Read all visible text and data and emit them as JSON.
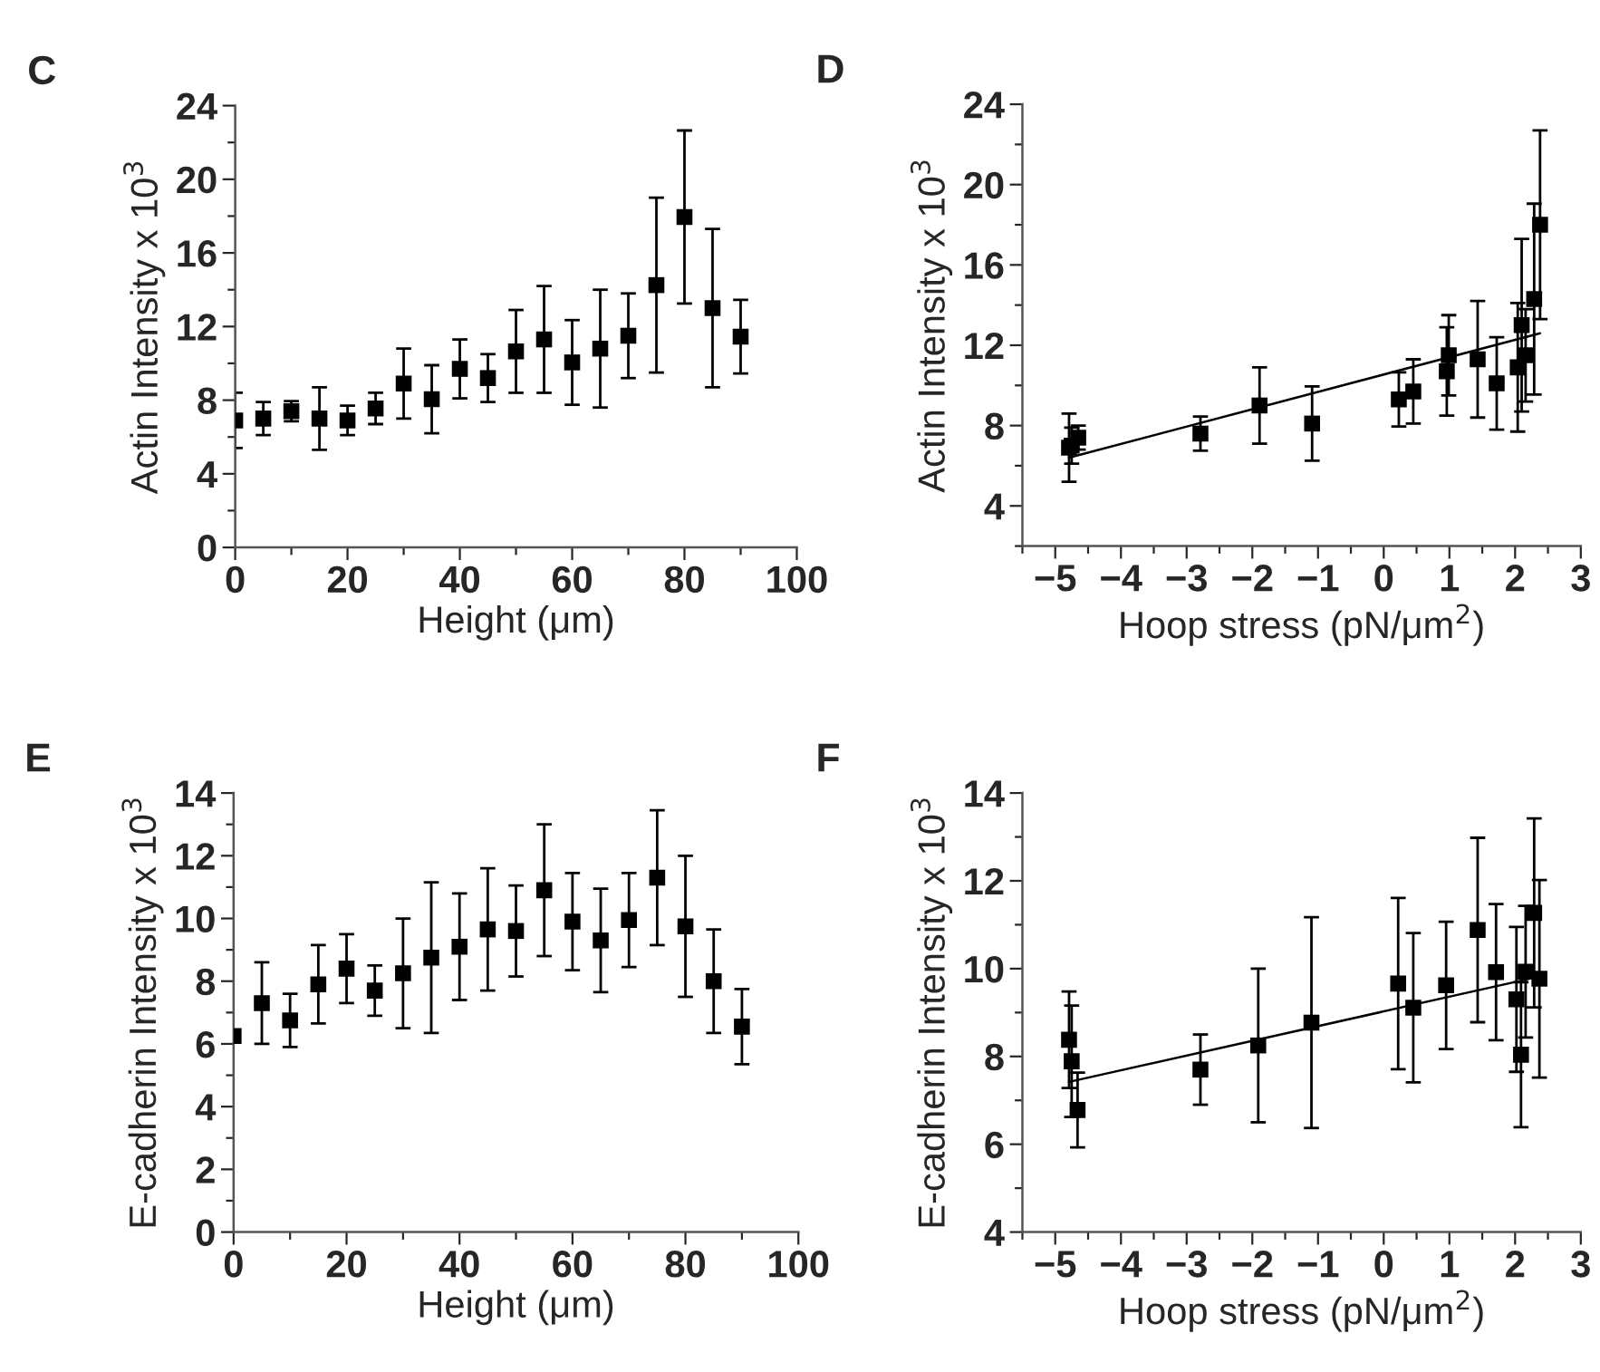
{
  "chart_data": [
    {
      "type": "scatter",
      "title": "C",
      "xlabel": "Height (μm)",
      "ylabel": "Actin Intensity x 10$^{3}$",
      "xlim": [
        0,
        100
      ],
      "xticks": [
        0,
        20,
        40,
        60,
        80,
        100
      ],
      "ylim": [
        0,
        24
      ],
      "yticks": [
        0,
        4,
        8,
        12,
        16,
        20,
        24
      ],
      "grid": false,
      "legend": false,
      "series": [
        {
          "marker": "square",
          "color": "#000000",
          "x": [
            0,
            5,
            10,
            15,
            20,
            25,
            30,
            35,
            40,
            45,
            50,
            55,
            60,
            65,
            70,
            75,
            80,
            85,
            90
          ],
          "values": [
            6.9,
            7.0,
            7.4,
            7.0,
            6.9,
            7.55,
            8.9,
            8.05,
            9.7,
            9.2,
            10.65,
            11.3,
            10.05,
            10.8,
            11.5,
            14.25,
            17.95,
            13.0,
            11.45
          ],
          "errors": [
            1.5,
            0.9,
            0.55,
            1.7,
            0.8,
            0.85,
            1.9,
            1.85,
            1.6,
            1.3,
            2.25,
            2.9,
            2.3,
            3.2,
            2.3,
            4.75,
            4.7,
            4.3,
            2.0
          ]
        }
      ]
    },
    {
      "type": "scatter",
      "title": "D",
      "xlabel": "Hoop stress (pN/μm$^{2}$)",
      "ylabel": "Actin Intensity x 10$^{3}$",
      "xlim": [
        -5.5,
        3
      ],
      "xticks": [
        -5,
        -4,
        -3,
        -2,
        -1,
        0,
        1,
        2,
        3
      ],
      "ylim": [
        2,
        24
      ],
      "yticks": [
        4,
        8,
        12,
        16,
        20,
        24
      ],
      "grid": false,
      "legend": false,
      "series": [
        {
          "marker": "square",
          "color": "#000000",
          "x": [
            -4.79,
            -4.75,
            -4.65,
            -2.79,
            -1.89,
            -1.09,
            0.23,
            0.45,
            0.96,
            0.99,
            1.43,
            1.72,
            2.04,
            2.1,
            2.16,
            2.29,
            2.38
          ],
          "values": [
            6.9,
            7.0,
            7.4,
            7.6,
            9.0,
            8.1,
            9.3,
            9.7,
            10.7,
            11.5,
            11.3,
            10.1,
            10.9,
            13.0,
            11.5,
            14.3,
            18.0
          ],
          "errors": [
            1.7,
            0.9,
            0.6,
            0.85,
            1.9,
            1.85,
            1.35,
            1.6,
            2.2,
            2.0,
            2.9,
            2.3,
            3.2,
            4.3,
            2.3,
            4.75,
            4.7
          ]
        },
        {
          "type": "line",
          "color": "#000000",
          "x": [
            -4.79,
            2.38
          ],
          "values": [
            6.4,
            12.6
          ]
        }
      ]
    },
    {
      "type": "scatter",
      "title": "E",
      "xlabel": "Height (μm)",
      "ylabel": "E-cadherin Intensity x 10$^{3}$",
      "xlim": [
        0,
        100
      ],
      "xticks": [
        0,
        20,
        40,
        60,
        80,
        100
      ],
      "ylim": [
        0,
        14
      ],
      "yticks": [
        0,
        2,
        4,
        6,
        8,
        10,
        12,
        14
      ],
      "grid": false,
      "legend": false,
      "series": [
        {
          "marker": "square",
          "color": "#000000",
          "x": [
            0,
            5,
            10,
            15,
            20,
            25,
            30,
            35,
            40,
            45,
            50,
            55,
            60,
            65,
            70,
            75,
            80,
            85,
            90
          ],
          "values": [
            6.25,
            7.3,
            6.75,
            7.9,
            8.4,
            7.7,
            8.25,
            8.75,
            9.1,
            9.65,
            9.6,
            10.9,
            9.9,
            9.3,
            9.95,
            11.3,
            9.75,
            8.0,
            6.55
          ],
          "errors": [
            null,
            1.3,
            0.85,
            1.25,
            1.1,
            0.8,
            1.75,
            2.4,
            1.7,
            1.95,
            1.45,
            2.1,
            1.55,
            1.65,
            1.5,
            2.15,
            2.25,
            1.65,
            1.2
          ]
        }
      ]
    },
    {
      "type": "scatter",
      "title": "F",
      "xlabel": "Hoop stress (pN/μm$^{2}$)",
      "ylabel": "E-cadherin Intensity x 10$^{3}$",
      "xlim": [
        -5.5,
        3
      ],
      "xticks": [
        -5,
        -4,
        -3,
        -2,
        -1,
        0,
        1,
        2,
        3
      ],
      "ylim": [
        4,
        14
      ],
      "yticks": [
        4,
        6,
        8,
        10,
        12,
        14
      ],
      "grid": false,
      "legend": false,
      "series": [
        {
          "marker": "square",
          "color": "#000000",
          "x": [
            -4.79,
            -4.75,
            -4.66,
            -2.79,
            -1.91,
            -1.1,
            0.22,
            0.45,
            0.95,
            1.43,
            1.71,
            2.02,
            2.09,
            2.16,
            2.29,
            2.37
          ],
          "values": [
            8.38,
            7.89,
            6.78,
            7.7,
            8.25,
            8.77,
            9.66,
            9.11,
            9.62,
            10.88,
            9.92,
            9.3,
            8.04,
            9.93,
            11.27,
            9.77
          ],
          "errors": [
            1.1,
            1.27,
            0.85,
            0.8,
            1.75,
            2.4,
            1.95,
            1.7,
            1.45,
            2.1,
            1.55,
            1.65,
            1.65,
            1.5,
            2.15,
            2.25
          ]
        },
        {
          "type": "line",
          "color": "#000000",
          "x": [
            -4.79,
            2.37
          ],
          "values": [
            7.42,
            9.82
          ]
        }
      ]
    }
  ]
}
